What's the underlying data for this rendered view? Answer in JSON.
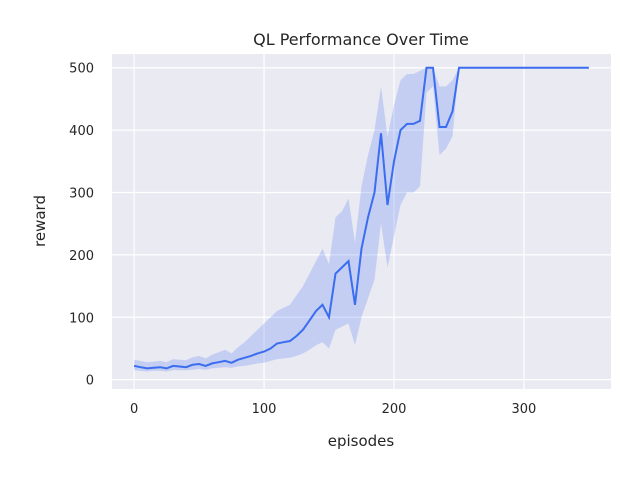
{
  "chart_data": {
    "type": "line",
    "title": "QL Performance Over Time",
    "xlabel": "episodes",
    "ylabel": "reward",
    "xlim": [
      -17,
      367
    ],
    "ylim": [
      -15,
      522
    ],
    "xticks": [
      0,
      100,
      200,
      300
    ],
    "yticks": [
      0,
      100,
      200,
      300,
      400,
      500
    ],
    "grid": true,
    "legend": "none",
    "colors": {
      "background": "#eaeaf2",
      "grid": "#ffffff",
      "line": "#3a6df0",
      "band": "#3a6df0"
    },
    "series": [
      {
        "x": [
          0,
          5,
          10,
          15,
          20,
          25,
          30,
          35,
          40,
          45,
          50,
          55,
          60,
          65,
          70,
          75,
          80,
          85,
          90,
          95,
          100,
          105,
          110,
          115,
          120,
          125,
          130,
          135,
          140,
          145,
          150,
          155,
          160,
          165,
          170,
          175,
          180,
          185,
          190,
          195,
          200,
          205,
          210,
          215,
          220,
          225,
          230,
          235,
          240,
          245,
          250,
          255,
          260,
          270,
          280,
          300,
          320,
          340,
          350
        ],
        "y": [
          22,
          20,
          18,
          19,
          20,
          18,
          22,
          21,
          20,
          24,
          25,
          22,
          26,
          28,
          30,
          27,
          32,
          35,
          38,
          42,
          45,
          50,
          58,
          60,
          62,
          70,
          80,
          95,
          110,
          120,
          100,
          170,
          180,
          190,
          120,
          210,
          260,
          300,
          395,
          280,
          350,
          400,
          410,
          410,
          415,
          500,
          500,
          405,
          405,
          430,
          500,
          500,
          500,
          500,
          500,
          500,
          500,
          500,
          500
        ],
        "lower": [
          15,
          14,
          13,
          14,
          14,
          13,
          15,
          15,
          15,
          16,
          17,
          16,
          18,
          19,
          20,
          19,
          21,
          22,
          24,
          26,
          27,
          30,
          33,
          34,
          35,
          38,
          42,
          48,
          55,
          60,
          50,
          80,
          85,
          90,
          55,
          100,
          130,
          160,
          250,
          180,
          230,
          280,
          300,
          300,
          310,
          460,
          470,
          360,
          370,
          390,
          500,
          500,
          500,
          500,
          500,
          500,
          500,
          500,
          500
        ],
        "upper": [
          32,
          30,
          28,
          29,
          30,
          28,
          33,
          32,
          31,
          36,
          38,
          34,
          40,
          44,
          48,
          42,
          52,
          60,
          70,
          80,
          90,
          100,
          110,
          115,
          120,
          135,
          150,
          170,
          190,
          210,
          185,
          260,
          270,
          290,
          220,
          310,
          360,
          400,
          470,
          390,
          440,
          480,
          490,
          490,
          495,
          500,
          500,
          470,
          470,
          480,
          500,
          500,
          500,
          500,
          500,
          500,
          500,
          500,
          500
        ]
      }
    ]
  }
}
